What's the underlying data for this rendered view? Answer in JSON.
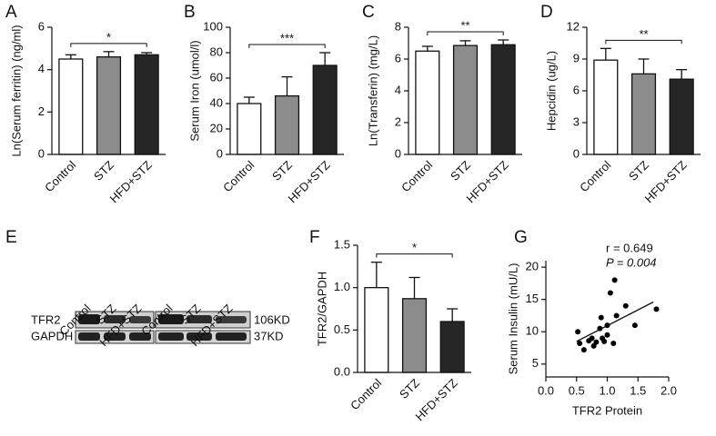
{
  "chart_data": [
    {
      "type": "bar",
      "panel": "A",
      "ylabel": "Ln(Serum ferritin) (ng/ml)",
      "categories": [
        "Control",
        "STZ",
        "HFD+STZ"
      ],
      "values": [
        4.5,
        4.6,
        4.7
      ],
      "errors": [
        0.2,
        0.25,
        0.1
      ],
      "colors": [
        "#ffffff",
        "#8c8c8c",
        "#262626"
      ],
      "ylim": [
        0,
        6
      ],
      "yticks": [
        0,
        2,
        4,
        6
      ],
      "significance": "*"
    },
    {
      "type": "bar",
      "panel": "B",
      "ylabel": "Serum Iron (umol/l)",
      "categories": [
        "Control",
        "STZ",
        "HFD+STZ"
      ],
      "values": [
        40,
        46,
        70
      ],
      "errors": [
        5,
        15,
        10
      ],
      "colors": [
        "#ffffff",
        "#8c8c8c",
        "#262626"
      ],
      "ylim": [
        0,
        100
      ],
      "yticks": [
        0,
        20,
        40,
        60,
        80,
        100
      ],
      "significance": "***"
    },
    {
      "type": "bar",
      "panel": "C",
      "ylabel": "Ln(Transferin) (mg/L)",
      "categories": [
        "Control",
        "STZ",
        "HFD+STZ"
      ],
      "values": [
        6.5,
        6.85,
        6.9
      ],
      "errors": [
        0.3,
        0.3,
        0.3
      ],
      "colors": [
        "#ffffff",
        "#8c8c8c",
        "#262626"
      ],
      "ylim": [
        0,
        8
      ],
      "yticks": [
        0,
        2,
        4,
        6,
        8
      ],
      "significance": "**"
    },
    {
      "type": "bar",
      "panel": "D",
      "ylabel": "Hepcidin (ug/L)",
      "categories": [
        "Control",
        "STZ",
        "HFD+STZ"
      ],
      "values": [
        8.9,
        7.6,
        7.1
      ],
      "errors": [
        1.1,
        1.4,
        0.9
      ],
      "colors": [
        "#ffffff",
        "#8c8c8c",
        "#262626"
      ],
      "ylim": [
        0,
        12
      ],
      "yticks": [
        0,
        3,
        6,
        9,
        12
      ],
      "significance": "**"
    },
    {
      "type": "bar",
      "panel": "F",
      "ylabel": "TFR2/GAPDH",
      "categories": [
        "Control",
        "STZ",
        "HFD+STZ"
      ],
      "values": [
        1.0,
        0.87,
        0.6
      ],
      "errors": [
        0.3,
        0.25,
        0.15
      ],
      "colors": [
        "#ffffff",
        "#8c8c8c",
        "#262626"
      ],
      "ylim": [
        0,
        1.5
      ],
      "yticks": [
        {
          "value": 0,
          "label": "0.0"
        },
        {
          "value": 0.5,
          "label": "0.5"
        },
        {
          "value": 1,
          "label": "1.0"
        },
        {
          "value": 1.5,
          "label": "1.5"
        }
      ],
      "significance": "*"
    },
    {
      "type": "scatter",
      "panel": "G",
      "xlabel": "TFR2 Protein",
      "ylabel": "Serum Insulin (mU/L)",
      "annotations": [
        "r = 0.649",
        "P = 0.004"
      ],
      "color": "#000000",
      "x": [
        0.52,
        0.55,
        0.62,
        0.7,
        0.75,
        0.78,
        0.82,
        0.88,
        0.9,
        0.92,
        0.95,
        1.0,
        1.05,
        1.1,
        1.12,
        1.15,
        1.3,
        1.45,
        1.8,
        1.0
      ],
      "y": [
        10.0,
        8.2,
        7.2,
        8.6,
        9.0,
        7.8,
        8.4,
        10.5,
        12.2,
        9.0,
        8.5,
        11.0,
        16.0,
        8.2,
        18.0,
        12.5,
        14.0,
        11.0,
        13.5,
        9.5
      ],
      "fit_line": {
        "x": [
          0.5,
          1.75
        ],
        "y": [
          8.5,
          14.6
        ]
      },
      "xlim": [
        0,
        2
      ],
      "ylim": [
        3,
        21
      ],
      "xticks": [
        {
          "value": 0,
          "label": "0.0"
        },
        {
          "value": 0.5,
          "label": "0.5"
        },
        {
          "value": 1,
          "label": "1.0"
        },
        {
          "value": 1.5,
          "label": "1.5"
        },
        {
          "value": 2,
          "label": "2.0"
        }
      ],
      "yticks": [
        5,
        10,
        15,
        20
      ]
    }
  ],
  "blot": {
    "panel": "E",
    "lanes": [
      "Control",
      "STZ",
      "HFD+STZ",
      "Control",
      "STZ",
      "HFD+STZ"
    ],
    "rows": [
      {
        "name": "TFR2",
        "size": "106KD"
      },
      {
        "name": "GAPDH",
        "size": "37KD"
      }
    ]
  }
}
